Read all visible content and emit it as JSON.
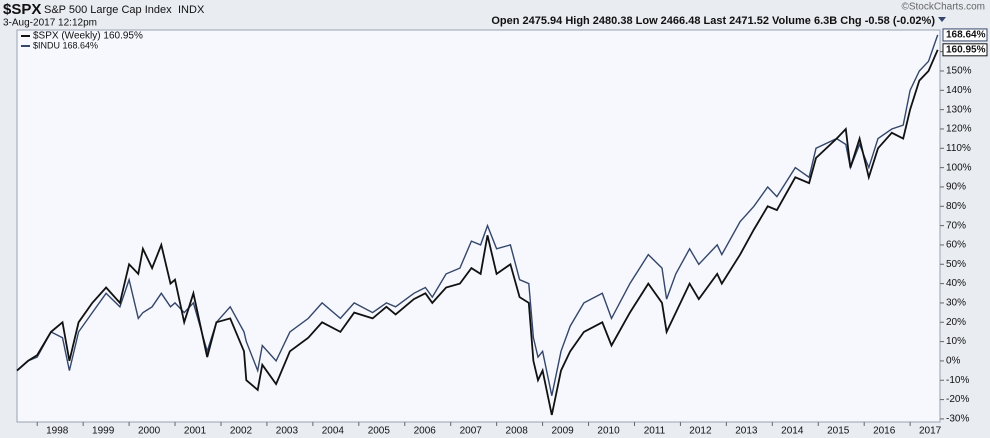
{
  "chart_data": {
    "type": "line",
    "symbol": "$SPX",
    "title": "S&P 500 Large Cap Index",
    "exchange": "INDX",
    "date": "3-Aug-2017 12:12pm",
    "quote": "Open 2475.94 High 2480.38 Low 2466.48 Last 2471.52 Volume 6.3B Chg -0.58 (-0.02%)",
    "watermark": "©StockCharts.com",
    "grid": false,
    "legend": "top-left",
    "x": [
      1997.56,
      1997.8,
      1998.0,
      1998.3,
      1998.55,
      1998.7,
      1998.9,
      1999.2,
      1999.5,
      1999.8,
      2000.0,
      2000.2,
      2000.3,
      2000.5,
      2000.7,
      2000.9,
      2001.0,
      2001.2,
      2001.4,
      2001.7,
      2001.9,
      2002.2,
      2002.5,
      2002.55,
      2002.8,
      2002.9,
      2003.2,
      2003.5,
      2003.9,
      2004.2,
      2004.6,
      2004.9,
      2005.3,
      2005.6,
      2005.8,
      2006.2,
      2006.45,
      2006.6,
      2006.9,
      2007.2,
      2007.45,
      2007.65,
      2007.8,
      2008.0,
      2008.3,
      2008.5,
      2008.7,
      2008.8,
      2008.9,
      2009.0,
      2009.2,
      2009.4,
      2009.6,
      2009.9,
      2010.3,
      2010.5,
      2010.9,
      2011.3,
      2011.6,
      2011.7,
      2011.9,
      2012.2,
      2012.4,
      2012.8,
      2012.9,
      2013.3,
      2013.6,
      2013.9,
      2014.1,
      2014.5,
      2014.8,
      2014.95,
      2015.4,
      2015.6,
      2015.7,
      2015.9,
      2016.1,
      2016.3,
      2016.6,
      2016.85,
      2017.0,
      2017.2,
      2017.4,
      2017.6
    ],
    "series": [
      {
        "name": "$SPX (Weekly) 160.95%",
        "color": "#111111",
        "last_label": "160.95%",
        "values": [
          -5,
          0,
          3,
          15,
          20,
          0,
          20,
          30,
          38,
          30,
          50,
          45,
          58,
          48,
          60,
          40,
          42,
          20,
          35,
          2,
          20,
          22,
          5,
          -10,
          -15,
          -2,
          -12,
          5,
          12,
          20,
          15,
          25,
          22,
          28,
          24,
          32,
          35,
          30,
          38,
          40,
          48,
          45,
          65,
          45,
          50,
          33,
          30,
          0,
          -10,
          -5,
          -28,
          -5,
          5,
          15,
          20,
          8,
          25,
          40,
          30,
          15,
          25,
          40,
          32,
          45,
          40,
          55,
          68,
          80,
          78,
          95,
          92,
          105,
          115,
          120,
          100,
          115,
          95,
          110,
          118,
          115,
          130,
          145,
          150,
          160.95
        ]
      },
      {
        "name": "$INDU 168.64%",
        "color": "#34466a",
        "last_label": "168.64%",
        "values": [
          -5,
          0,
          2,
          15,
          12,
          -5,
          15,
          25,
          35,
          28,
          42,
          22,
          25,
          28,
          35,
          28,
          30,
          25,
          30,
          5,
          20,
          28,
          15,
          10,
          -5,
          8,
          0,
          15,
          22,
          30,
          22,
          30,
          25,
          30,
          28,
          35,
          38,
          33,
          45,
          48,
          62,
          60,
          70,
          58,
          60,
          42,
          40,
          12,
          2,
          5,
          -18,
          5,
          18,
          30,
          35,
          22,
          40,
          55,
          48,
          32,
          45,
          58,
          50,
          60,
          55,
          72,
          80,
          90,
          85,
          100,
          95,
          110,
          115,
          112,
          100,
          112,
          100,
          115,
          120,
          122,
          140,
          150,
          155,
          168.64
        ]
      }
    ],
    "xlim": [
      1997.56,
      2017.65
    ],
    "xticks": [
      1998,
      1999,
      2000,
      2001,
      2002,
      2003,
      2004,
      2005,
      2006,
      2007,
      2008,
      2009,
      2010,
      2011,
      2012,
      2013,
      2014,
      2015,
      2016,
      2017
    ],
    "ylim": [
      -31.6,
      171.2
    ],
    "yticks": [
      {
        "value": -30,
        "label": "-30%"
      },
      {
        "value": -20,
        "label": "-20%"
      },
      {
        "value": -10,
        "label": "-10%"
      },
      {
        "value": 0,
        "label": "0%"
      },
      {
        "value": 10,
        "label": "10%"
      },
      {
        "value": 20,
        "label": "20%"
      },
      {
        "value": 30,
        "label": "30%"
      },
      {
        "value": 40,
        "label": "40%"
      },
      {
        "value": 50,
        "label": "50%"
      },
      {
        "value": 60,
        "label": "60%"
      },
      {
        "value": 70,
        "label": "70%"
      },
      {
        "value": 80,
        "label": "80%"
      },
      {
        "value": 90,
        "label": "90%"
      },
      {
        "value": 100,
        "label": "100%"
      },
      {
        "value": 110,
        "label": "110%"
      },
      {
        "value": 120,
        "label": "120%"
      },
      {
        "value": 130,
        "label": "130%"
      },
      {
        "value": 140,
        "label": "140%"
      },
      {
        "value": 150,
        "label": "150%"
      },
      {
        "value": 160,
        "label": "160%"
      }
    ]
  }
}
